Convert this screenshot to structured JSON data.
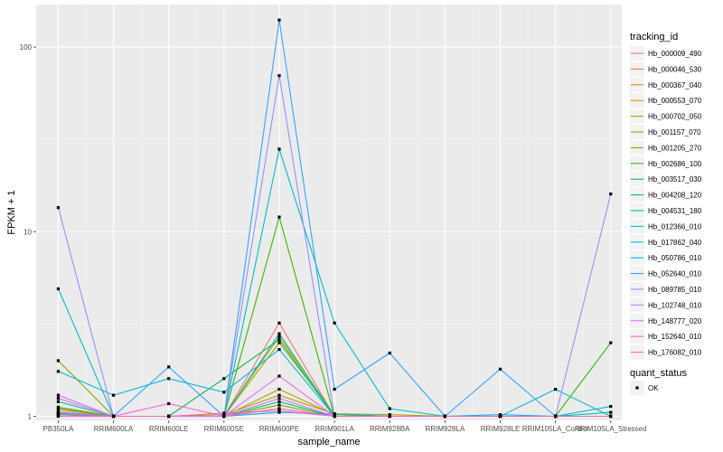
{
  "chart_data": {
    "type": "line",
    "xlabel": "sample_name",
    "ylabel": "FPKM + 1",
    "yscale": "log10",
    "ylim": [
      0.95,
      170
    ],
    "y_ticks": [
      1,
      10,
      100
    ],
    "y_tick_labels": [
      "1",
      "10",
      "100"
    ],
    "grid": true,
    "legend_position": "right",
    "categories": [
      "PB350LA",
      "RRIM600LA",
      "RRIM600LE",
      "RRIM600SE",
      "RRIM600PE",
      "RRIM901LA",
      "RRIM928BA",
      "RRIM928LA",
      "RRIM928LE",
      "RRIM105LA_Control",
      "RRIM105LA_Stressed"
    ],
    "legend_title": "tracking_id",
    "series": [
      {
        "name": "Hb_000009_490",
        "color": "#F8766D",
        "values": [
          1.08,
          1.0,
          1.0,
          1.0,
          3.2,
          1.0,
          1.0,
          1.0,
          1.0,
          1.0,
          1.0
        ]
      },
      {
        "name": "Hb_000046_530",
        "color": "#EC8239",
        "values": [
          1.03,
          1.0,
          1.0,
          1.0,
          1.1,
          1.0,
          1.0,
          1.0,
          1.0,
          1.0,
          1.0
        ]
      },
      {
        "name": "Hb_000367_040",
        "color": "#DB8E00",
        "values": [
          1.05,
          1.0,
          1.0,
          1.0,
          2.7,
          1.02,
          1.0,
          1.0,
          1.0,
          1.0,
          1.0
        ]
      },
      {
        "name": "Hb_000553_070",
        "color": "#C79800",
        "values": [
          1.02,
          1.0,
          1.0,
          1.0,
          1.4,
          1.02,
          1.0,
          1.0,
          1.0,
          1.0,
          1.0
        ]
      },
      {
        "name": "Hb_000702_050",
        "color": "#AFA100",
        "values": [
          1.1,
          1.0,
          1.0,
          1.02,
          1.3,
          1.03,
          1.02,
          1.0,
          1.0,
          1.0,
          1.0
        ]
      },
      {
        "name": "Hb_001157_070",
        "color": "#93AA00",
        "values": [
          1.04,
          1.0,
          1.0,
          1.0,
          2.5,
          1.02,
          1.0,
          1.0,
          1.0,
          1.0,
          1.0
        ]
      },
      {
        "name": "Hb_001205_270",
        "color": "#72B000",
        "values": [
          2.0,
          1.0,
          1.0,
          1.0,
          1.15,
          1.0,
          1.0,
          1.0,
          1.0,
          1.0,
          1.0
        ]
      },
      {
        "name": "Hb_002686_100",
        "color": "#39B600",
        "values": [
          1.12,
          1.0,
          1.0,
          1.0,
          12.0,
          1.0,
          1.0,
          1.0,
          1.0,
          1.0,
          2.5
        ]
      },
      {
        "name": "Hb_003517_030",
        "color": "#00BB4E",
        "values": [
          1.0,
          1.0,
          1.0,
          1.6,
          2.6,
          1.0,
          1.0,
          1.0,
          1.0,
          1.0,
          1.0
        ]
      },
      {
        "name": "Hb_004208_120",
        "color": "#00BF7D",
        "values": [
          1.02,
          1.0,
          1.0,
          1.0,
          1.2,
          1.0,
          1.0,
          1.0,
          1.0,
          1.0,
          1.0
        ]
      },
      {
        "name": "Hb_004531_180",
        "color": "#00C1A3",
        "values": [
          1.2,
          1.0,
          1.0,
          1.0,
          2.8,
          1.0,
          1.0,
          1.0,
          1.0,
          1.0,
          1.05
        ]
      },
      {
        "name": "Hb_012366_010",
        "color": "#00BFC4",
        "values": [
          4.9,
          1.0,
          1.0,
          1.0,
          28.0,
          3.2,
          1.1,
          1.0,
          1.0,
          1.4,
          1.0
        ]
      },
      {
        "name": "Hb_017862_040",
        "color": "#00BAE0",
        "values": [
          1.75,
          1.3,
          1.6,
          1.35,
          2.3,
          1.0,
          1.0,
          1.0,
          1.0,
          1.0,
          1.13
        ]
      },
      {
        "name": "Hb_050786_010",
        "color": "#00B0F6",
        "values": [
          1.0,
          1.0,
          1.0,
          1.0,
          1.05,
          1.03,
          1.0,
          1.0,
          1.02,
          1.0,
          1.0
        ]
      },
      {
        "name": "Hb_052640_010",
        "color": "#35A2FF",
        "values": [
          1.05,
          1.0,
          1.85,
          1.0,
          140.0,
          1.4,
          2.2,
          1.0,
          1.8,
          1.0,
          1.0
        ]
      },
      {
        "name": "Hb_089785_010",
        "color": "#9590FF",
        "values": [
          13.5,
          1.0,
          1.0,
          1.0,
          70.0,
          1.0,
          1.0,
          1.0,
          1.0,
          1.0,
          16.0
        ]
      },
      {
        "name": "Hb_102748_010",
        "color": "#C77CFF",
        "values": [
          1.3,
          1.0,
          1.0,
          1.0,
          1.25,
          1.0,
          1.0,
          1.0,
          1.0,
          1.0,
          1.0
        ]
      },
      {
        "name": "Hb_148777_020",
        "color": "#E76BF3",
        "values": [
          1.25,
          1.0,
          1.0,
          1.0,
          1.65,
          1.0,
          1.0,
          1.0,
          1.0,
          1.0,
          1.0
        ]
      },
      {
        "name": "Hb_152640_010",
        "color": "#FA62DB",
        "values": [
          1.0,
          1.0,
          1.17,
          1.0,
          1.1,
          1.0,
          1.0,
          1.0,
          1.0,
          1.0,
          1.0
        ]
      },
      {
        "name": "Hb_176082_010",
        "color": "#FF62BC",
        "values": [
          1.03,
          1.0,
          1.0,
          1.04,
          1.07,
          1.0,
          1.0,
          1.0,
          1.0,
          1.0,
          1.0
        ]
      }
    ],
    "shape_legend": {
      "title": "quant_status",
      "entries": [
        "OK"
      ]
    }
  }
}
